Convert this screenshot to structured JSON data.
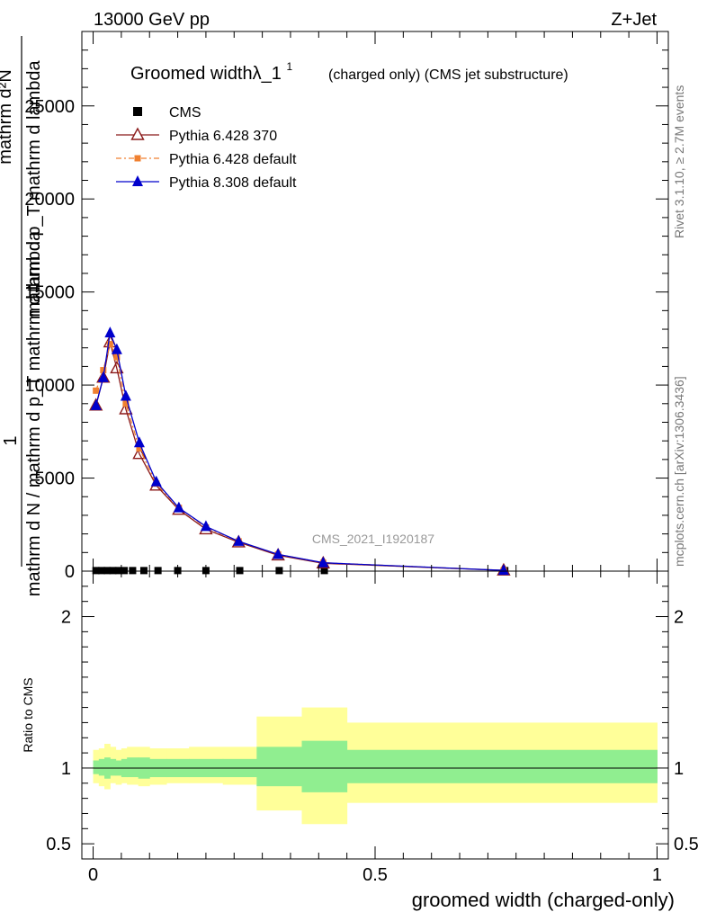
{
  "header": {
    "energy_label": "13000 GeV pp",
    "process_label": "Z+Jet"
  },
  "side_labels": {
    "rivet": "Rivet 3.1.10, ≥ 2.7M events",
    "mcplots": "mcplots.cern.ch [arXiv:1306.3436]"
  },
  "chart_data": [
    {
      "type": "line",
      "title_main": "Groomed widthλ_1",
      "title_sup": "1",
      "title_sub": "(charged only) (CMS jet substructure)",
      "watermark": "CMS_2021_I1920187",
      "ylabel_top": "1",
      "ylabel_mid": "mathrm d N / mathrm d p_T mathrm d lambda",
      "ylabel_num": "mathrm d²N",
      "ylabel_den": "mathrm d p_T mathrm d lambda",
      "ylim": [
        0,
        29000
      ],
      "xlim": [
        -0.02,
        1.02
      ],
      "y_ticks": [
        0,
        5000,
        10000,
        15000,
        20000,
        25000
      ],
      "y_tick_labels": [
        "0",
        "5000",
        "10000",
        "15000",
        "20000",
        "25000"
      ],
      "legend_position": "top-left",
      "series": [
        {
          "name": "CMS",
          "color": "#000000",
          "marker": "square",
          "x": [
            0.005,
            0.015,
            0.025,
            0.035,
            0.045,
            0.055,
            0.07,
            0.09,
            0.115,
            0.15,
            0.2,
            0.26,
            0.33,
            0.41,
            0.73
          ],
          "y": [
            30,
            30,
            30,
            30,
            30,
            30,
            30,
            30,
            30,
            30,
            30,
            30,
            30,
            30,
            30
          ]
        },
        {
          "name": "Pythia 6.428 370",
          "color": "#8b1a1a",
          "marker": "open-triangle",
          "x": [
            0.005,
            0.018,
            0.03,
            0.042,
            0.058,
            0.082,
            0.112,
            0.152,
            0.2,
            0.258,
            0.328,
            0.408,
            0.728
          ],
          "y": [
            8900,
            10400,
            12300,
            10900,
            8700,
            6300,
            4600,
            3300,
            2250,
            1550,
            850,
            420,
            40
          ]
        },
        {
          "name": "Pythia 6.428 default",
          "color": "#f08030",
          "marker": "square",
          "x": [
            0.005,
            0.018,
            0.03,
            0.042,
            0.058,
            0.082,
            0.112,
            0.152,
            0.2,
            0.258,
            0.328,
            0.408,
            0.728
          ],
          "y": [
            9700,
            10800,
            12200,
            11500,
            9000,
            6600,
            4700,
            3400,
            2350,
            1600,
            900,
            450,
            40
          ]
        },
        {
          "name": "Pythia 8.308 default",
          "color": "#0000cc",
          "marker": "triangle",
          "x": [
            0.005,
            0.018,
            0.03,
            0.042,
            0.058,
            0.082,
            0.112,
            0.152,
            0.2,
            0.258,
            0.328,
            0.408,
            0.728
          ],
          "y": [
            8900,
            10400,
            12800,
            11900,
            9400,
            6900,
            4800,
            3400,
            2400,
            1600,
            900,
            450,
            40
          ]
        }
      ]
    },
    {
      "type": "area",
      "ylabel": "Ratio to CMS",
      "xlabel": "groomed width (charged-only)",
      "xlim": [
        -0.02,
        1.02
      ],
      "ylim": [
        0.4,
        2.3
      ],
      "y_ticks": [
        0.5,
        1,
        2
      ],
      "y_tick_labels": [
        "0.5",
        "1",
        "2"
      ],
      "x_ticks": [
        0,
        0.5,
        1
      ],
      "x_tick_labels": [
        "0",
        "0.5",
        "1"
      ],
      "bin_edges": [
        0,
        0.01,
        0.02,
        0.03,
        0.04,
        0.05,
        0.06,
        0.08,
        0.1,
        0.13,
        0.17,
        0.23,
        0.29,
        0.37,
        0.45,
        1.0
      ],
      "band_inner": {
        "name": "stat",
        "color": "#90ee90",
        "lo": [
          0.96,
          0.95,
          0.93,
          0.95,
          0.95,
          0.94,
          0.94,
          0.93,
          0.94,
          0.94,
          0.94,
          0.94,
          0.88,
          0.84,
          0.9
        ],
        "hi": [
          1.05,
          1.06,
          1.07,
          1.06,
          1.05,
          1.06,
          1.07,
          1.07,
          1.06,
          1.06,
          1.06,
          1.06,
          1.14,
          1.18,
          1.12
        ]
      },
      "band_outer": {
        "name": "total",
        "color": "#ffff99",
        "lo": [
          0.9,
          0.88,
          0.86,
          0.9,
          0.89,
          0.9,
          0.89,
          0.88,
          0.89,
          0.9,
          0.9,
          0.89,
          0.72,
          0.63,
          0.77
        ],
        "hi": [
          1.12,
          1.13,
          1.16,
          1.14,
          1.12,
          1.13,
          1.14,
          1.14,
          1.13,
          1.13,
          1.14,
          1.14,
          1.34,
          1.4,
          1.3
        ]
      }
    }
  ]
}
